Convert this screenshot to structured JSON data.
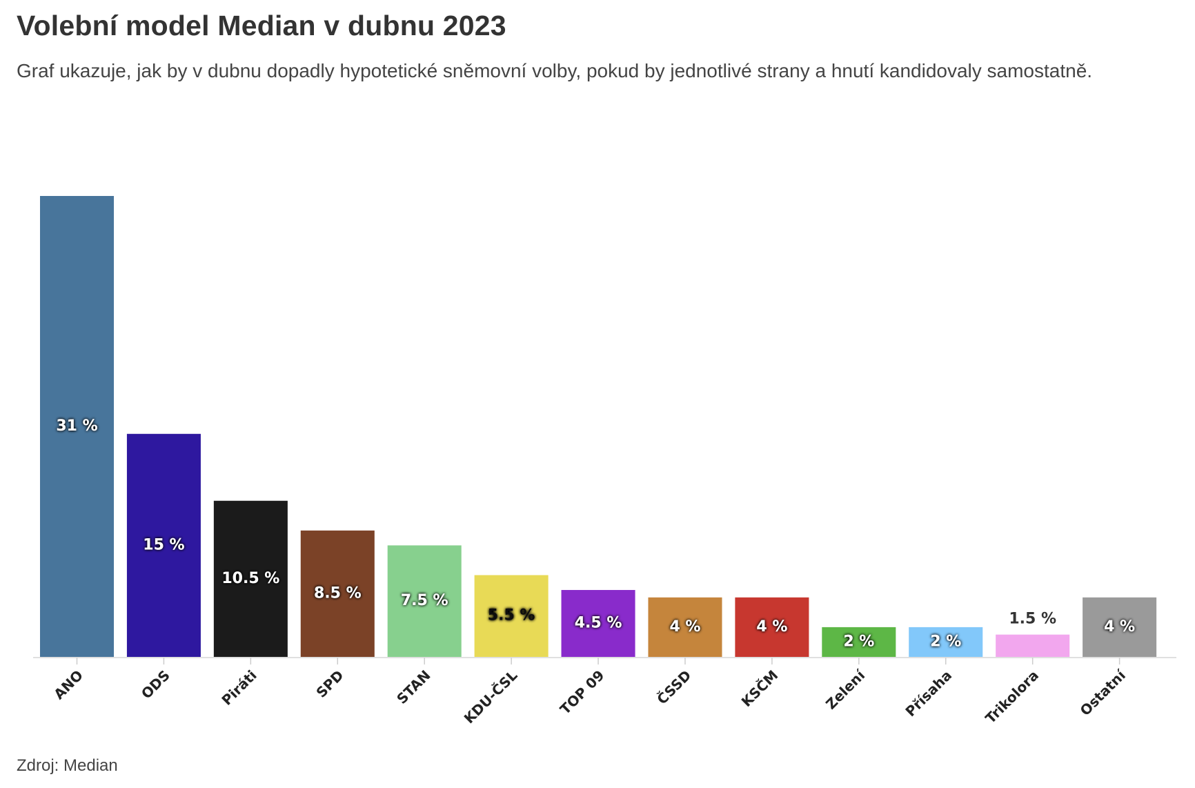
{
  "header": {
    "title": "Volební model Median v dubnu 2023",
    "subtitle": "Graf ukazuje, jak by v dubnu dopadly hypotetické sněmovní volby, pokud by jednotlivé strany a hnutí kandidovaly samostatně."
  },
  "footer": {
    "source": "Zdroj: Median"
  },
  "chart_data": {
    "type": "bar",
    "title": "Volební model Median v dubnu 2023",
    "subtitle": "Graf ukazuje, jak by v dubnu dopadly hypotetické sněmovní volby, pokud by jednotlivé strany a hnutí kandidovaly samostatně.",
    "xlabel": "",
    "ylabel": "",
    "ylim": [
      0,
      31
    ],
    "grid": false,
    "legend": "none",
    "unit_suffix": " %",
    "categories": [
      "ANO",
      "ODS",
      "Piráti",
      "SPD",
      "STAN",
      "KDU-ČSL",
      "TOP 09",
      "ČSSD",
      "KSČM",
      "Zelení",
      "Přísaha",
      "Trikolora",
      "Ostatní"
    ],
    "values": [
      31,
      15,
      10.5,
      8.5,
      7.5,
      5.5,
      4.5,
      4,
      4,
      2,
      2,
      1.5,
      4
    ],
    "labels": [
      "31 %",
      "15 %",
      "10.5 %",
      "8.5 %",
      "7.5 %",
      "5.5 %",
      "4.5 %",
      "4 %",
      "4 %",
      "2 %",
      "2 %",
      "1.5 %",
      "4 %"
    ],
    "colors": [
      "#48759b",
      "#2e189f",
      "#1b1b1b",
      "#7b4227",
      "#87d08e",
      "#e8da56",
      "#892bcb",
      "#c5853c",
      "#c7372f",
      "#5db746",
      "#82c8fa",
      "#f2a7ee",
      "#9a9a9a"
    ],
    "label_colors": [
      "#ffffff",
      "#ffffff",
      "#ffffff",
      "#ffffff",
      "#ffffff",
      "#111111",
      "#ffffff",
      "#ffffff",
      "#ffffff",
      "#ffffff",
      "#ffffff",
      "#333333",
      "#ffffff"
    ],
    "label_outside": [
      false,
      false,
      false,
      false,
      false,
      false,
      false,
      false,
      false,
      false,
      false,
      true,
      false
    ]
  }
}
